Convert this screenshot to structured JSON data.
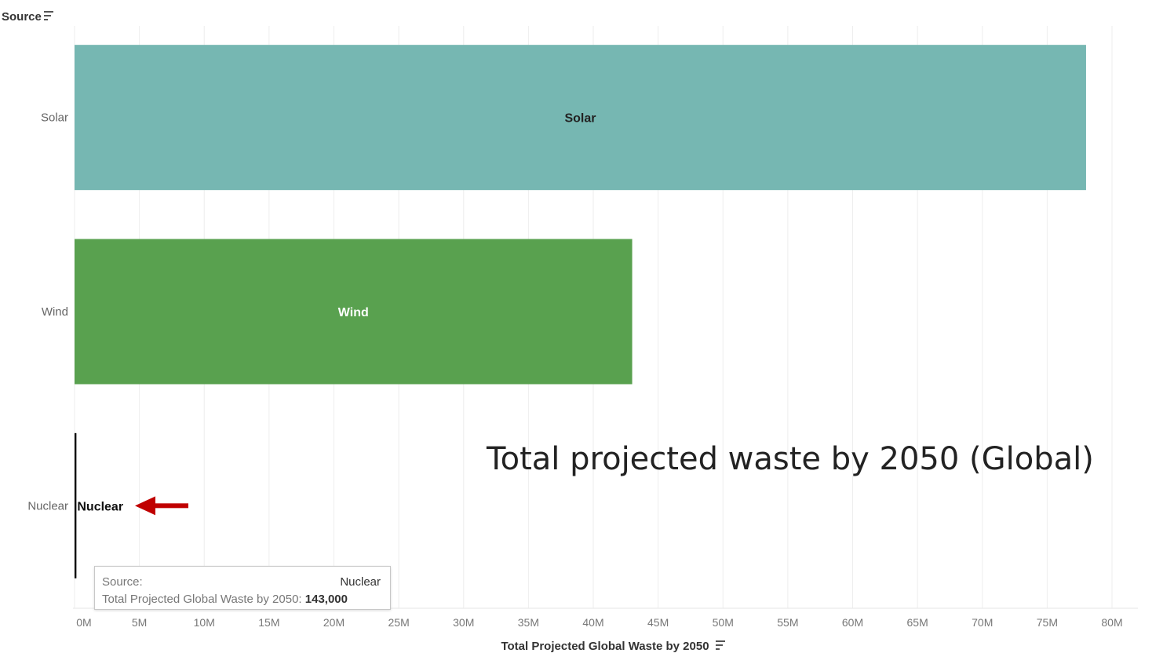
{
  "chart_data": {
    "type": "bar",
    "orientation": "horizontal",
    "title": "Total projected waste by 2050 (Global)",
    "ylabel": "Source",
    "xlabel": "Total Projected Global Waste by 2050",
    "categories": [
      "Solar",
      "Wind",
      "Nuclear"
    ],
    "values": [
      78000000,
      43000000,
      143000
    ],
    "bar_colors": [
      "#76b7b2",
      "#59a14f",
      "#000000"
    ],
    "bar_label_colors": [
      "#222222",
      "#ffffff",
      "#111111"
    ],
    "xlim": [
      0,
      80000000
    ],
    "ticks": [
      "0M",
      "5M",
      "10M",
      "15M",
      "20M",
      "25M",
      "30M",
      "35M",
      "40M",
      "45M",
      "50M",
      "55M",
      "60M",
      "65M",
      "70M",
      "75M",
      "80M"
    ],
    "grid": true,
    "annotation": {
      "type": "arrow",
      "target": "Nuclear",
      "color": "#c00000"
    },
    "tooltip": {
      "source_label": "Source:",
      "source_value": "Nuclear",
      "measure_label": "Total Projected Global Waste by 2050:",
      "measure_value": "143,000"
    }
  }
}
